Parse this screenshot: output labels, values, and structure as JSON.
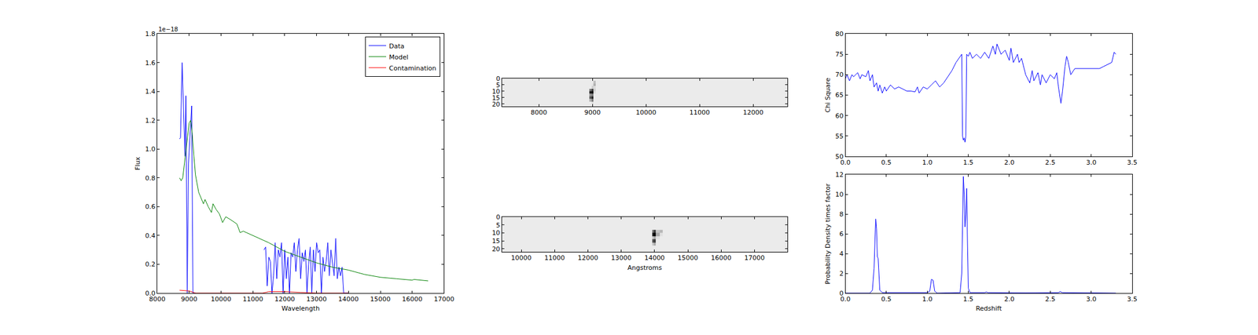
{
  "chart_data": [
    {
      "type": "line",
      "x_label": "Wavelength",
      "y_label": "Flux",
      "annotations": [
        "1e−18"
      ],
      "legend": "upper right",
      "grid": false,
      "xlim": [
        8000,
        17000
      ],
      "xticks": [
        8000,
        9000,
        10000,
        11000,
        12000,
        13000,
        14000,
        15000,
        16000,
        17000
      ],
      "ylim": [
        0,
        1.8
      ],
      "yticks": [
        {
          "value": 0,
          "label": "0.0"
        },
        0.2,
        0.4,
        0.6,
        0.8,
        {
          "value": 1,
          "label": "1.0"
        },
        1.2,
        1.4,
        1.6,
        1.8
      ],
      "series": [
        {
          "name": "Data",
          "color": "#0000ff",
          "x": [
            8700,
            8730,
            8780,
            8830,
            8870,
            8900,
            8940,
            8980,
            9030,
            9080,
            9120,
            9200,
            10000,
            11350,
            11400,
            11450,
            11500,
            11550,
            11600,
            11650,
            11700,
            11750,
            11800,
            11850,
            11900,
            11950,
            12000,
            12050,
            12100,
            12150,
            12200,
            12250,
            12300,
            12350,
            12400,
            12450,
            12500,
            12550,
            12600,
            12650,
            12700,
            12750,
            12800,
            12850,
            12900,
            12950,
            13000,
            13050,
            13100,
            13150,
            13200,
            13250,
            13300,
            13350,
            13400,
            13450,
            13500,
            13550,
            13600,
            13650,
            13700,
            13750,
            13800,
            13850,
            13900,
            14000
          ],
          "values": [
            1.07,
            1.08,
            1.6,
            1.25,
            0.95,
            1.37,
            0.0,
            0.9,
            1.1,
            1.3,
            0.0,
            0.0,
            null,
            0.3,
            0.32,
            0.05,
            0.25,
            0.22,
            0.0,
            0.12,
            0.35,
            0.1,
            0.3,
            0.25,
            0.35,
            0.0,
            0.3,
            0.1,
            0.25,
            0.0,
            0.28,
            0.25,
            0.35,
            0.15,
            0.3,
            0.38,
            0.1,
            0.28,
            0.22,
            0.3,
            0.0,
            0.2,
            0.32,
            0.0,
            0.3,
            0.15,
            0.35,
            0.28,
            0.3,
            0.0,
            0.25,
            0.15,
            0.22,
            0.35,
            0.12,
            0.3,
            0.2,
            0.12,
            0.38,
            0.1,
            0.18,
            0.12,
            0.18,
            0.0,
            0.0,
            0.0
          ]
        },
        {
          "name": "Model",
          "color": "#008000",
          "x": [
            8700,
            8750,
            8800,
            8850,
            8900,
            8950,
            9000,
            9050,
            9100,
            9150,
            9200,
            9300,
            9400,
            9450,
            9500,
            9600,
            9700,
            9750,
            9850,
            9950,
            10050,
            10150,
            10300,
            10500,
            10600,
            10700,
            10800,
            11000,
            11500,
            12000,
            12500,
            13000,
            13500,
            14000,
            14500,
            15000,
            15500,
            16000,
            16050,
            16500
          ],
          "values": [
            0.8,
            0.78,
            0.8,
            0.9,
            1.0,
            1.1,
            1.18,
            1.2,
            1.1,
            0.95,
            0.82,
            0.7,
            0.65,
            0.62,
            0.65,
            0.6,
            0.56,
            0.62,
            0.58,
            0.55,
            0.49,
            0.53,
            0.51,
            0.48,
            0.42,
            0.43,
            0.42,
            0.4,
            0.35,
            0.29,
            0.25,
            0.21,
            0.18,
            0.16,
            0.13,
            0.11,
            0.1,
            0.09,
            0.095,
            0.085
          ]
        },
        {
          "name": "Contamination",
          "color": "#ff0000",
          "x": [
            8700,
            9000,
            9200,
            11300,
            11500,
            12000,
            12500,
            13000,
            14000
          ],
          "values": [
            0.02,
            0.015,
            0.0,
            0.0,
            0.01,
            0.01,
            0.005,
            0.0,
            0.0
          ]
        }
      ]
    },
    {
      "type": "heatmap",
      "grid": false,
      "xlim": [
        7310,
        12640
      ],
      "xticks": [
        8000,
        9000,
        10000,
        11000,
        12000
      ],
      "ylim": [
        22,
        0
      ],
      "yticks": [
        0,
        5,
        10,
        15,
        20
      ],
      "x_edges": [
        7310,
        8940,
        8980,
        9020,
        9060,
        12640
      ],
      "y_edges": [
        0,
        2,
        4,
        6,
        8,
        10,
        12,
        14,
        16,
        18,
        20,
        22
      ],
      "cells": [
        [
          0.1,
          0.1,
          0.1,
          0.1,
          0.1
        ],
        [
          0.1,
          0.1,
          0.1,
          0.25,
          0.1
        ],
        [
          0.1,
          0.1,
          0.12,
          0.3,
          0.1
        ],
        [
          0.1,
          0.1,
          0.2,
          0.15,
          0.1
        ],
        [
          0.1,
          0.5,
          0.7,
          0.2,
          0.1
        ],
        [
          0.1,
          0.8,
          0.9,
          0.15,
          0.1
        ],
        [
          0.1,
          0.4,
          0.5,
          0.1,
          0.1
        ],
        [
          0.1,
          0.6,
          0.8,
          0.1,
          0.1
        ],
        [
          0.1,
          0.3,
          0.5,
          0.1,
          0.1
        ],
        [
          0.1,
          0.1,
          0.15,
          0.1,
          0.1
        ],
        [
          0.1,
          0.1,
          0.1,
          0.1,
          0.1
        ]
      ]
    },
    {
      "type": "heatmap",
      "grid": false,
      "x_label": "Angstroms",
      "xlim": [
        9420,
        17990
      ],
      "xticks": [
        10000,
        11000,
        12000,
        13000,
        14000,
        15000,
        16000,
        17000
      ],
      "ylim": [
        22,
        0
      ],
      "yticks": [
        0,
        5,
        10,
        15,
        20
      ],
      "x_edges": [
        9420,
        13930,
        13980,
        14030,
        14150,
        14250,
        17990
      ],
      "y_edges": [
        0,
        2,
        4,
        6,
        8,
        10,
        12,
        14,
        16,
        18,
        20,
        22
      ],
      "cells": [
        [
          0.06,
          0.06,
          0.06,
          0.06,
          0.06,
          0.06
        ],
        [
          0.06,
          0.06,
          0.06,
          0.06,
          0.06,
          0.06
        ],
        [
          0.06,
          0.06,
          0.06,
          0.06,
          0.06,
          0.06
        ],
        [
          0.06,
          0.06,
          0.06,
          0.06,
          0.06,
          0.06
        ],
        [
          0.06,
          0.5,
          0.7,
          0.2,
          0.25,
          0.06
        ],
        [
          0.06,
          0.8,
          0.9,
          0.3,
          0.1,
          0.06
        ],
        [
          0.06,
          0.2,
          0.3,
          0.1,
          0.06,
          0.06
        ],
        [
          0.06,
          0.6,
          0.7,
          0.06,
          0.06,
          0.06
        ],
        [
          0.06,
          0.2,
          0.3,
          0.06,
          0.06,
          0.06
        ],
        [
          0.06,
          0.06,
          0.06,
          0.06,
          0.06,
          0.06
        ],
        [
          0.06,
          0.06,
          0.06,
          0.06,
          0.06,
          0.06
        ]
      ]
    },
    {
      "type": "line",
      "grid": false,
      "y_label": "Chi Square",
      "xlim": [
        0,
        3.5
      ],
      "xticks": [
        {
          "value": 0,
          "label": "0.0"
        },
        0.5,
        {
          "value": 1,
          "label": "1.0"
        },
        1.5,
        {
          "value": 2,
          "label": "2.0"
        },
        2.5,
        {
          "value": 3,
          "label": "3.0"
        },
        3.5
      ],
      "ylim": [
        50,
        80
      ],
      "yticks": [
        50,
        55,
        60,
        65,
        70,
        75,
        80
      ],
      "series": [
        {
          "color": "#0000ff",
          "x": [
            0.0,
            0.02,
            0.05,
            0.08,
            0.1,
            0.15,
            0.18,
            0.2,
            0.25,
            0.28,
            0.3,
            0.33,
            0.35,
            0.38,
            0.4,
            0.42,
            0.45,
            0.48,
            0.5,
            0.55,
            0.6,
            0.65,
            0.7,
            0.75,
            0.8,
            0.85,
            0.88,
            0.9,
            0.95,
            1.0,
            1.05,
            1.1,
            1.15,
            1.2,
            1.25,
            1.3,
            1.35,
            1.4,
            1.42,
            1.43,
            1.44,
            1.45,
            1.46,
            1.47,
            1.48,
            1.5,
            1.52,
            1.55,
            1.6,
            1.65,
            1.7,
            1.75,
            1.8,
            1.83,
            1.85,
            1.9,
            1.95,
            2.0,
            2.02,
            2.05,
            2.1,
            2.12,
            2.15,
            2.2,
            2.25,
            2.28,
            2.3,
            2.35,
            2.38,
            2.4,
            2.45,
            2.5,
            2.55,
            2.58,
            2.6,
            2.63,
            2.65,
            2.68,
            2.7,
            2.72,
            2.75,
            2.8,
            2.9,
            3.0,
            3.1,
            3.15,
            3.2,
            3.25,
            3.28,
            3.3
          ],
          "values": [
            69,
            70,
            68.5,
            70,
            69.5,
            70.5,
            69,
            70,
            69.5,
            71,
            68.5,
            70,
            67,
            68,
            66,
            67.5,
            65.5,
            67,
            66,
            67.5,
            66.5,
            67,
            66.5,
            66,
            66,
            65.8,
            67,
            65.5,
            67,
            66.5,
            67.5,
            68.5,
            67,
            68,
            69.5,
            71,
            73,
            74.5,
            75,
            55,
            54,
            54.5,
            53.5,
            55,
            75,
            74.5,
            75.5,
            74,
            75,
            74,
            75.5,
            74,
            77,
            75,
            77.5,
            75,
            76,
            73.5,
            76.5,
            73,
            75,
            73,
            74,
            70,
            68,
            71,
            68.5,
            70.5,
            67.5,
            70,
            68,
            70,
            69,
            70.5,
            67,
            63,
            66,
            72,
            74.5,
            73,
            70,
            71.5,
            71.5,
            71.5,
            71.5,
            72,
            72.5,
            73,
            75.5,
            75
          ]
        }
      ]
    },
    {
      "type": "line",
      "grid": false,
      "x_label": "Redshift",
      "y_label": "Probability Density times factor",
      "xlim": [
        0,
        3.5
      ],
      "xticks": [
        {
          "value": 0,
          "label": "0.0"
        },
        0.5,
        {
          "value": 1,
          "label": "1.0"
        },
        1.5,
        {
          "value": 2,
          "label": "2.0"
        },
        2.5,
        {
          "value": 3,
          "label": "3.0"
        },
        3.5
      ],
      "ylim": [
        0,
        12
      ],
      "yticks": [
        0,
        2,
        4,
        6,
        8,
        10,
        12
      ],
      "series": [
        {
          "color": "#0000ff",
          "x": [
            0,
            0.3,
            0.33,
            0.35,
            0.37,
            0.38,
            0.39,
            0.4,
            0.42,
            0.45,
            0.8,
            1.0,
            1.03,
            1.05,
            1.07,
            1.09,
            1.12,
            1.4,
            1.42,
            1.44,
            1.45,
            1.46,
            1.47,
            1.48,
            1.49,
            1.5,
            1.52,
            1.7,
            1.72,
            1.74,
            2.2,
            2.6,
            2.62,
            2.65,
            3.3
          ],
          "values": [
            0,
            0,
            0.3,
            2.5,
            7.5,
            6.5,
            3.7,
            3.5,
            0.3,
            0.05,
            0.05,
            0.05,
            0.2,
            1.4,
            1.3,
            0.2,
            0,
            0.05,
            2,
            11.8,
            10,
            6.7,
            8,
            10.6,
            5,
            0.5,
            0.05,
            0.05,
            0.12,
            0.05,
            0.02,
            0.05,
            0.15,
            0.05,
            0
          ]
        }
      ]
    }
  ]
}
